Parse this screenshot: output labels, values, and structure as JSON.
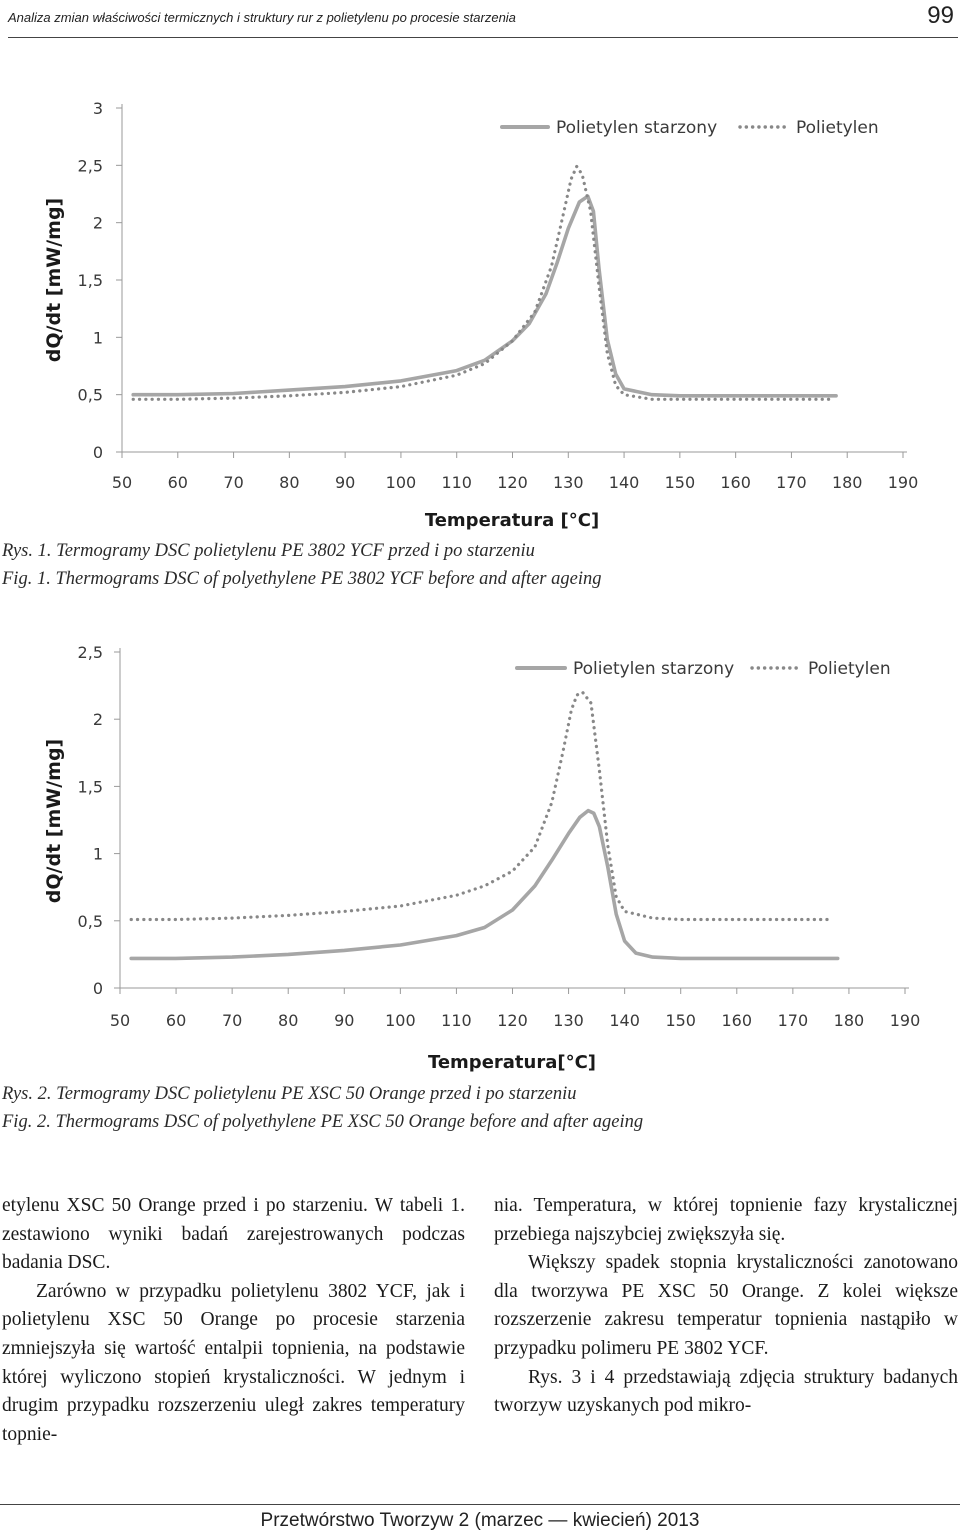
{
  "header": {
    "running_title": "Analiza zmian właściwości termicznych i struktury rur z polietylenu po procesie starzenia",
    "page_number": "99"
  },
  "chart_data": [
    {
      "type": "line",
      "ylabel": "dQ/dt [mW/mg]",
      "xlabel": "Temperatura [°C]",
      "xlim": [
        50,
        190
      ],
      "ylim": [
        0,
        3
      ],
      "x_ticks": [
        "50",
        "60",
        "70",
        "80",
        "90",
        "100",
        "110",
        "120",
        "130",
        "140",
        "150",
        "160",
        "170",
        "180",
        "190"
      ],
      "y_ticks": [
        "0",
        "0,5",
        "1",
        "1,5",
        "2",
        "2,5",
        "3"
      ],
      "legend": "top-right",
      "grid": false,
      "series": [
        {
          "name": "Polietylen starzony",
          "style": "solid",
          "color": "#a6a6a6",
          "x": [
            52,
            60,
            70,
            80,
            90,
            100,
            110,
            115,
            120,
            123,
            126,
            128,
            130,
            132,
            133.5,
            134.5,
            135.5,
            137,
            138.5,
            140,
            145,
            150,
            160,
            170,
            178
          ],
          "y": [
            0.5,
            0.5,
            0.51,
            0.54,
            0.57,
            0.62,
            0.71,
            0.8,
            0.97,
            1.12,
            1.38,
            1.65,
            1.95,
            2.18,
            2.23,
            2.1,
            1.6,
            0.98,
            0.68,
            0.55,
            0.5,
            0.49,
            0.49,
            0.49,
            0.49
          ]
        },
        {
          "name": "Polietylen",
          "style": "dotted",
          "color": "#888888",
          "x": [
            52,
            60,
            70,
            80,
            90,
            100,
            110,
            115,
            120,
            124,
            127,
            129,
            130.5,
            131.5,
            132.5,
            134,
            135.5,
            137,
            138.5,
            140,
            145,
            150,
            160,
            170,
            177
          ],
          "y": [
            0.46,
            0.46,
            0.47,
            0.49,
            0.52,
            0.57,
            0.67,
            0.77,
            0.97,
            1.22,
            1.62,
            2.05,
            2.38,
            2.49,
            2.42,
            2.1,
            1.45,
            0.86,
            0.58,
            0.5,
            0.46,
            0.46,
            0.46,
            0.46,
            0.46
          ]
        }
      ]
    },
    {
      "type": "line",
      "ylabel": "dQ/dt [mW/mg]",
      "xlabel": "Temperatura[°C]",
      "xlim": [
        50,
        190
      ],
      "ylim": [
        0,
        2.5
      ],
      "x_ticks": [
        "50",
        "60",
        "70",
        "80",
        "90",
        "100",
        "110",
        "120",
        "130",
        "140",
        "150",
        "160",
        "170",
        "180",
        "190"
      ],
      "y_ticks": [
        "0",
        "0,5",
        "1",
        "1,5",
        "2",
        "2,5"
      ],
      "legend": "top-right",
      "grid": false,
      "series": [
        {
          "name": "Polietylen starzony",
          "style": "solid",
          "color": "#a6a6a6",
          "x": [
            52,
            60,
            70,
            80,
            90,
            100,
            110,
            115,
            120,
            124,
            127,
            130,
            132,
            133.5,
            134.5,
            135.5,
            137,
            138.5,
            140,
            142,
            145,
            150,
            160,
            170,
            178
          ],
          "y": [
            0.22,
            0.22,
            0.23,
            0.25,
            0.28,
            0.32,
            0.39,
            0.45,
            0.58,
            0.76,
            0.95,
            1.15,
            1.27,
            1.32,
            1.3,
            1.2,
            0.9,
            0.55,
            0.35,
            0.26,
            0.23,
            0.22,
            0.22,
            0.22,
            0.22
          ]
        },
        {
          "name": "Polietylen",
          "style": "dotted",
          "color": "#888888",
          "x": [
            52,
            60,
            70,
            80,
            90,
            100,
            110,
            115,
            120,
            124,
            127,
            129,
            130.5,
            131.5,
            132.5,
            134,
            135.5,
            137,
            138.5,
            140,
            145,
            150,
            160,
            170,
            177
          ],
          "y": [
            0.51,
            0.51,
            0.52,
            0.54,
            0.57,
            0.61,
            0.69,
            0.76,
            0.87,
            1.05,
            1.38,
            1.76,
            2.07,
            2.18,
            2.2,
            2.12,
            1.62,
            1.06,
            0.68,
            0.57,
            0.52,
            0.51,
            0.51,
            0.51,
            0.51
          ]
        }
      ]
    }
  ],
  "captions": {
    "fig1_pl": "Rys. 1. Termogramy DSC polietylenu PE 3802 YCF przed i po starzeniu",
    "fig1_en": "Fig. 1. Thermograms DSC of polyethylene PE 3802 YCF before and after ageing",
    "fig2_pl": "Rys. 2. Termogramy DSC polietylenu PE XSC 50 Orange przed i po starzeniu",
    "fig2_en": "Fig. 2. Thermograms DSC of polyethylene PE XSC 50 Orange before and after ageing"
  },
  "body": {
    "left_p1": "etylenu XSC 50 Orange przed i po starzeniu. W tabeli 1. zestawiono wyniki badań zarejestrowanych podczas badania DSC.",
    "left_p2": "Zarówno w przypadku polietylenu 3802 YCF, jak i polietylenu XSC 50 Orange po procesie starzenia zmniejszyła się wartość entalpii topnienia, na podstawie której wyliczono stopień krystaliczności. W jednym i drugim przypadku rozszerzeniu uległ zakres temperatury topnie-",
    "right_p1": "nia. Temperatura, w której topnienie fazy krystalicznej przebiega najszybciej zwiększyła się.",
    "right_p2": "Większy spadek stopnia krystaliczności zanotowano dla tworzywa PE XSC 50 Orange. Z kolei większe rozszerzenie zakresu temperatur topnienia nastąpiło w przypadku polimeru PE 3802 YCF.",
    "right_p3": "Rys. 3 i 4 przedstawiają zdjęcia struktury badanych tworzyw uzyskanych pod mikro-"
  },
  "footer": {
    "journal": "Przetwórstwo Tworzyw 2 (marzec — kwiecień) 2013"
  }
}
